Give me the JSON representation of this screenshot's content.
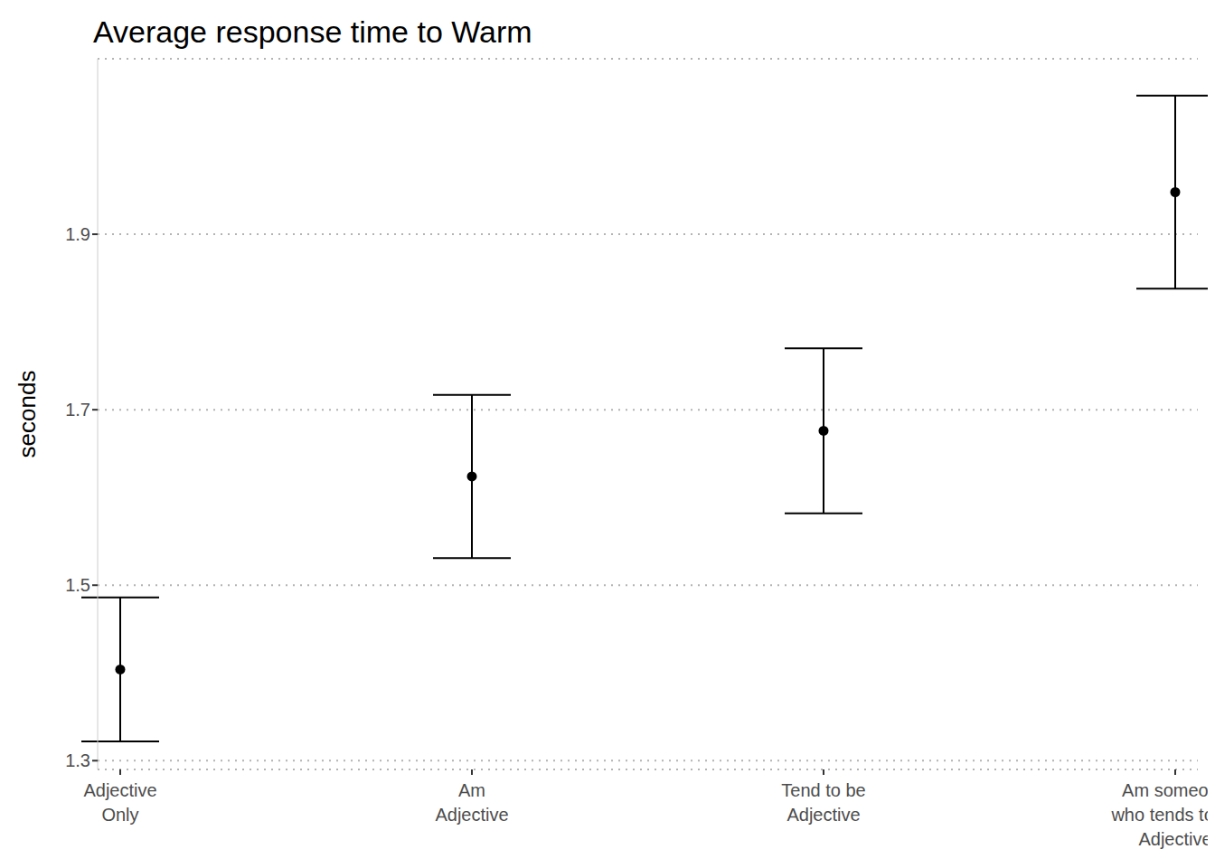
{
  "chart_data": {
    "type": "scatter",
    "title": "Average response time to Warm",
    "y_label": "seconds",
    "categories": [
      "Adjective\nOnly",
      "Am\nAdjective",
      "Tend to be\nAdjective",
      "Am someone\nwho tends to be\nAdjective"
    ],
    "values": [
      1.404,
      1.624,
      1.676,
      1.948
    ],
    "errors": [
      0.082,
      0.093,
      0.094,
      0.11
    ],
    "color": "#000000",
    "ylim": [
      1.29,
      2.1
    ],
    "yticks": [
      1.3,
      1.5,
      1.7,
      1.9
    ],
    "grid": true,
    "marker": "circle"
  }
}
